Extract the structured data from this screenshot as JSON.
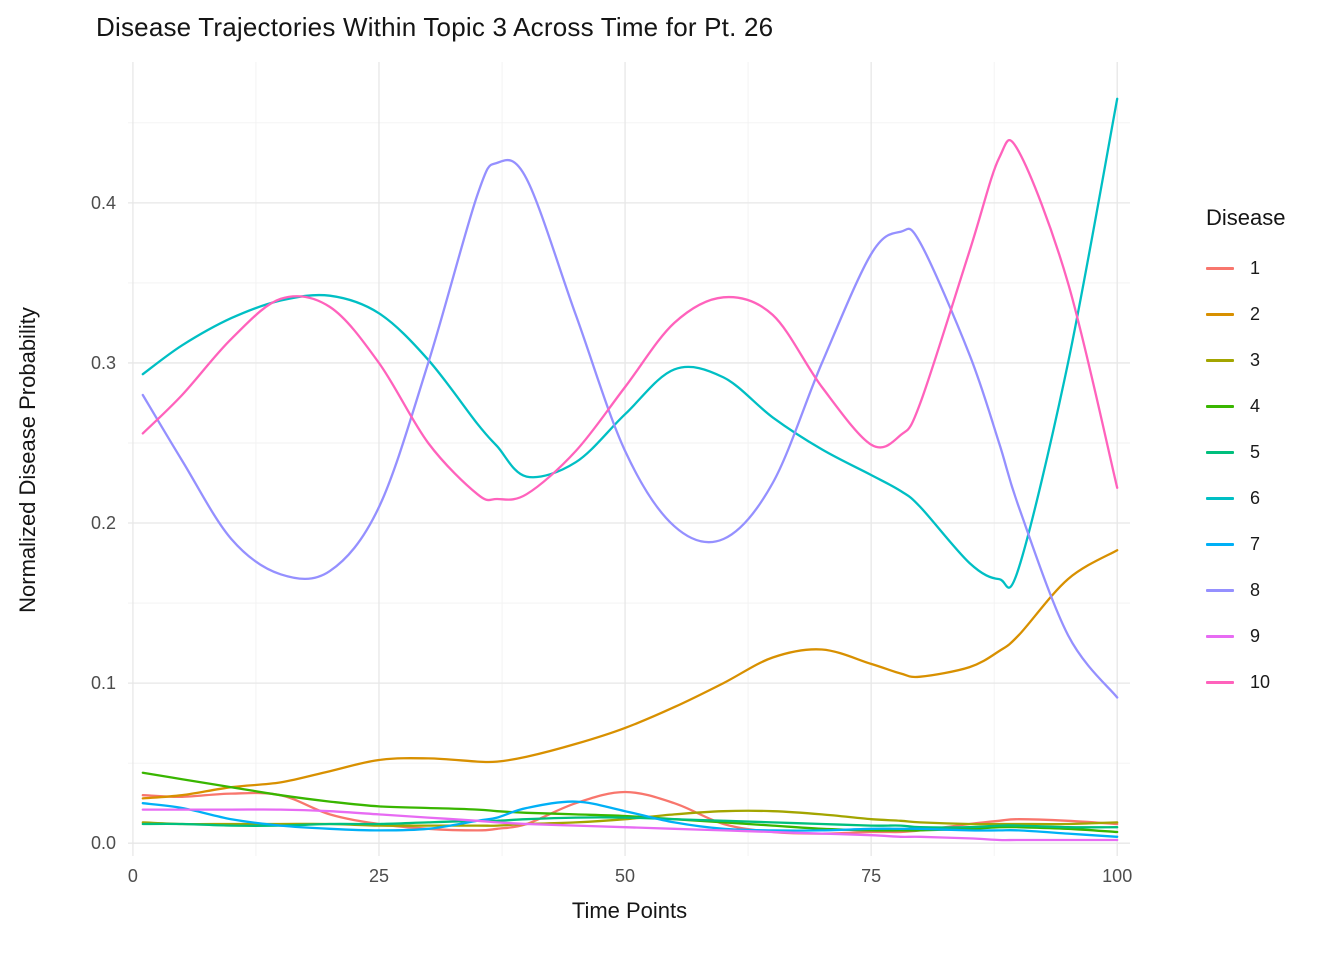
{
  "chart_data": {
    "type": "line",
    "title": "Disease Trajectories Within Topic 3 Across Time for Pt. 26",
    "xlabel": "Time Points",
    "ylabel": "Normalized Disease Probability",
    "legend_title": "Disease",
    "legend_position": "right",
    "grid": true,
    "xlim": [
      -0.5,
      101.3
    ],
    "ylim": [
      -0.008,
      0.488
    ],
    "x_ticks": [
      0,
      25,
      50,
      75,
      100
    ],
    "x_tick_labels": [
      "0",
      "25",
      "50",
      "75",
      "100"
    ],
    "x_minor_ticks": [
      12.5,
      37.5,
      62.5,
      87.5
    ],
    "y_ticks": [
      0.0,
      0.1,
      0.2,
      0.3,
      0.4
    ],
    "y_tick_labels": [
      "0.0",
      "0.1",
      "0.2",
      "0.3",
      "0.4"
    ],
    "y_minor_ticks": [
      0.05,
      0.15,
      0.25,
      0.35,
      0.45
    ],
    "x": [
      1,
      5,
      10,
      15,
      20,
      25,
      30,
      35,
      37,
      40,
      45,
      50,
      55,
      60,
      65,
      70,
      75,
      78,
      80,
      85,
      88,
      90,
      95,
      100
    ],
    "series": [
      {
        "name": "1",
        "color": "#F8766D",
        "values": [
          0.03,
          0.029,
          0.031,
          0.03,
          0.018,
          0.012,
          0.009,
          0.008,
          0.009,
          0.012,
          0.025,
          0.032,
          0.025,
          0.012,
          0.007,
          0.006,
          0.007,
          0.007,
          0.008,
          0.012,
          0.014,
          0.015,
          0.014,
          0.012
        ]
      },
      {
        "name": "2",
        "color": "#D89000",
        "values": [
          0.028,
          0.03,
          0.035,
          0.038,
          0.045,
          0.052,
          0.053,
          0.051,
          0.051,
          0.054,
          0.062,
          0.072,
          0.085,
          0.1,
          0.116,
          0.121,
          0.112,
          0.106,
          0.104,
          0.11,
          0.12,
          0.13,
          0.165,
          0.183
        ]
      },
      {
        "name": "3",
        "color": "#A3A500",
        "values": [
          0.013,
          0.012,
          0.012,
          0.012,
          0.012,
          0.011,
          0.011,
          0.011,
          0.011,
          0.012,
          0.013,
          0.015,
          0.018,
          0.02,
          0.02,
          0.018,
          0.015,
          0.014,
          0.013,
          0.012,
          0.012,
          0.012,
          0.012,
          0.013
        ]
      },
      {
        "name": "4",
        "color": "#39B600",
        "values": [
          0.044,
          0.04,
          0.035,
          0.03,
          0.026,
          0.023,
          0.022,
          0.021,
          0.02,
          0.019,
          0.018,
          0.017,
          0.015,
          0.013,
          0.011,
          0.009,
          0.008,
          0.008,
          0.008,
          0.009,
          0.01,
          0.01,
          0.009,
          0.007
        ]
      },
      {
        "name": "5",
        "color": "#00BF7D",
        "values": [
          0.012,
          0.012,
          0.011,
          0.011,
          0.012,
          0.012,
          0.013,
          0.014,
          0.014,
          0.015,
          0.016,
          0.016,
          0.015,
          0.014,
          0.013,
          0.012,
          0.011,
          0.011,
          0.01,
          0.01,
          0.011,
          0.011,
          0.01,
          0.01
        ]
      },
      {
        "name": "6",
        "color": "#00BFC4",
        "values": [
          0.293,
          0.311,
          0.328,
          0.339,
          0.342,
          0.331,
          0.302,
          0.262,
          0.248,
          0.229,
          0.238,
          0.268,
          0.296,
          0.291,
          0.266,
          0.246,
          0.23,
          0.22,
          0.21,
          0.175,
          0.165,
          0.172,
          0.3,
          0.465
        ]
      },
      {
        "name": "7",
        "color": "#00B0F6",
        "values": [
          0.025,
          0.022,
          0.015,
          0.011,
          0.009,
          0.008,
          0.009,
          0.014,
          0.016,
          0.022,
          0.026,
          0.02,
          0.013,
          0.009,
          0.008,
          0.008,
          0.009,
          0.009,
          0.009,
          0.008,
          0.008,
          0.008,
          0.006,
          0.004
        ]
      },
      {
        "name": "8",
        "color": "#9590FF",
        "values": [
          0.28,
          0.239,
          0.19,
          0.168,
          0.17,
          0.21,
          0.3,
          0.405,
          0.425,
          0.415,
          0.33,
          0.245,
          0.198,
          0.19,
          0.225,
          0.3,
          0.368,
          0.382,
          0.375,
          0.305,
          0.25,
          0.21,
          0.13,
          0.091
        ]
      },
      {
        "name": "9",
        "color": "#E76BF3",
        "values": [
          0.021,
          0.021,
          0.021,
          0.021,
          0.02,
          0.018,
          0.016,
          0.014,
          0.013,
          0.012,
          0.011,
          0.01,
          0.009,
          0.008,
          0.007,
          0.006,
          0.005,
          0.004,
          0.004,
          0.003,
          0.002,
          0.002,
          0.002,
          0.002
        ]
      },
      {
        "name": "10",
        "color": "#FF62BC",
        "values": [
          0.256,
          0.28,
          0.315,
          0.34,
          0.335,
          0.3,
          0.25,
          0.218,
          0.215,
          0.218,
          0.245,
          0.285,
          0.325,
          0.341,
          0.33,
          0.285,
          0.249,
          0.255,
          0.275,
          0.37,
          0.428,
          0.432,
          0.35,
          0.222
        ]
      }
    ]
  }
}
